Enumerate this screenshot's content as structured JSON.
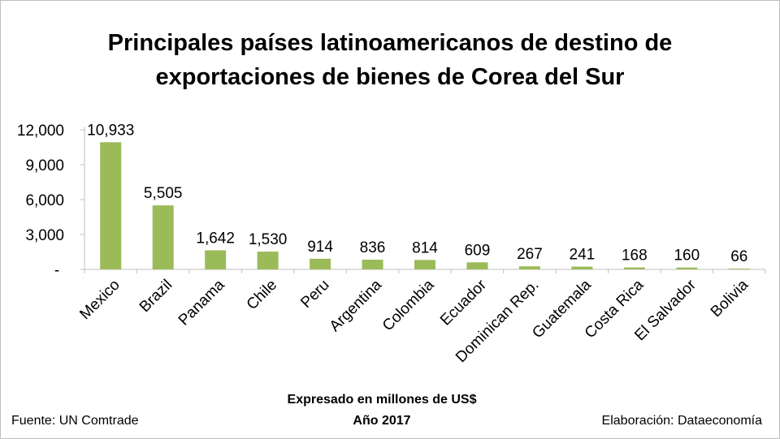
{
  "chart_data": {
    "type": "bar",
    "title_line1": "Principales países latinoamericanos de destino de",
    "title_line2": "exportaciones de bienes de Corea del Sur",
    "categories": [
      "Mexico",
      "Brazil",
      "Panama",
      "Chile",
      "Peru",
      "Argentina",
      "Colombia",
      "Ecuador",
      "Dominican Rep.",
      "Guatemala",
      "Costa Rica",
      "El Salvador",
      "Bolivia"
    ],
    "values": [
      10933,
      5505,
      1642,
      1530,
      914,
      836,
      814,
      609,
      267,
      241,
      168,
      160,
      66
    ],
    "value_labels": [
      "10,933",
      "5,505",
      "1,642",
      "1,530",
      "914",
      "836",
      "814",
      "609",
      "267",
      "241",
      "168",
      "160",
      "66"
    ],
    "ylim": [
      0,
      12000
    ],
    "yticks": [
      0,
      3000,
      6000,
      9000,
      12000
    ],
    "ytick_labels": [
      "-",
      "3,000",
      "6,000",
      "9,000",
      "12,000"
    ],
    "xlabel": "Expresado en millones de US$",
    "subnote": "Año 2017",
    "grid": false,
    "bar_color": "#9BBB59"
  },
  "footer": {
    "source": "Fuente: UN Comtrade",
    "credit": "Elaboración: Dataeconomía"
  }
}
